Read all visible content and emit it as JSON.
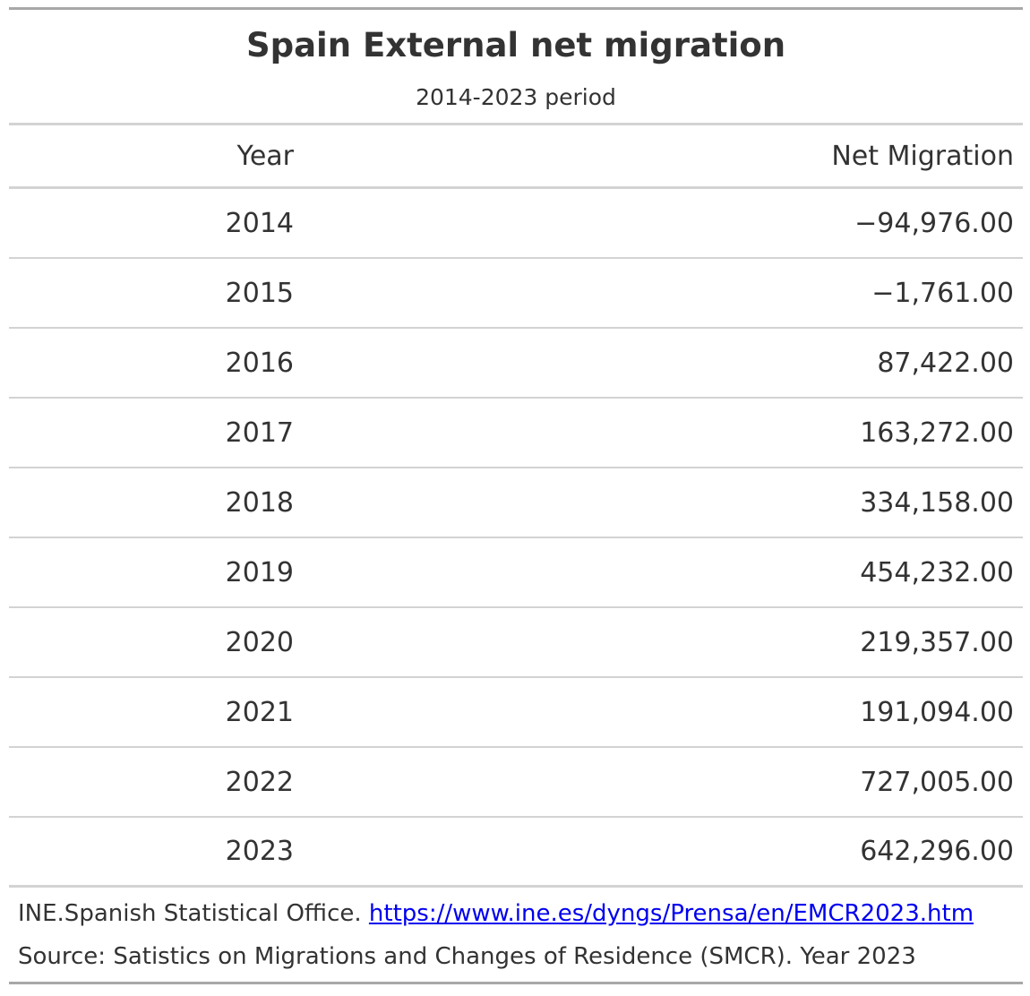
{
  "title": "Spain External net migration",
  "subtitle": "2014-2023 period",
  "columns": {
    "year": "Year",
    "value": "Net Migration"
  },
  "rows": [
    {
      "year": "2014",
      "value": "−94,976.00"
    },
    {
      "year": "2015",
      "value": "−1,761.00"
    },
    {
      "year": "2016",
      "value": "87,422.00"
    },
    {
      "year": "2017",
      "value": "163,272.00"
    },
    {
      "year": "2018",
      "value": "334,158.00"
    },
    {
      "year": "2019",
      "value": "454,232.00"
    },
    {
      "year": "2020",
      "value": "219,357.00"
    },
    {
      "year": "2021",
      "value": "191,094.00"
    },
    {
      "year": "2022",
      "value": "727,005.00"
    },
    {
      "year": "2023",
      "value": "642,296.00"
    }
  ],
  "footer": {
    "source_org": "INE.Spanish Statistical Office.",
    "link_text": "https://www.ine.es/dyngs/Prensa/en/EMCR2023.htm",
    "source_note": "Source: Satistics on Migrations and Changes of Residence (SMCR). Year 2023"
  },
  "chart_data": {
    "type": "table",
    "title": "Spain External net migration",
    "subtitle": "2014-2023 period",
    "columns": [
      "Year",
      "Net Migration"
    ],
    "x": [
      2014,
      2015,
      2016,
      2017,
      2018,
      2019,
      2020,
      2021,
      2022,
      2023
    ],
    "values": [
      -94976,
      -1761,
      87422,
      163272,
      334158,
      454232,
      219357,
      191094,
      727005,
      642296
    ]
  }
}
